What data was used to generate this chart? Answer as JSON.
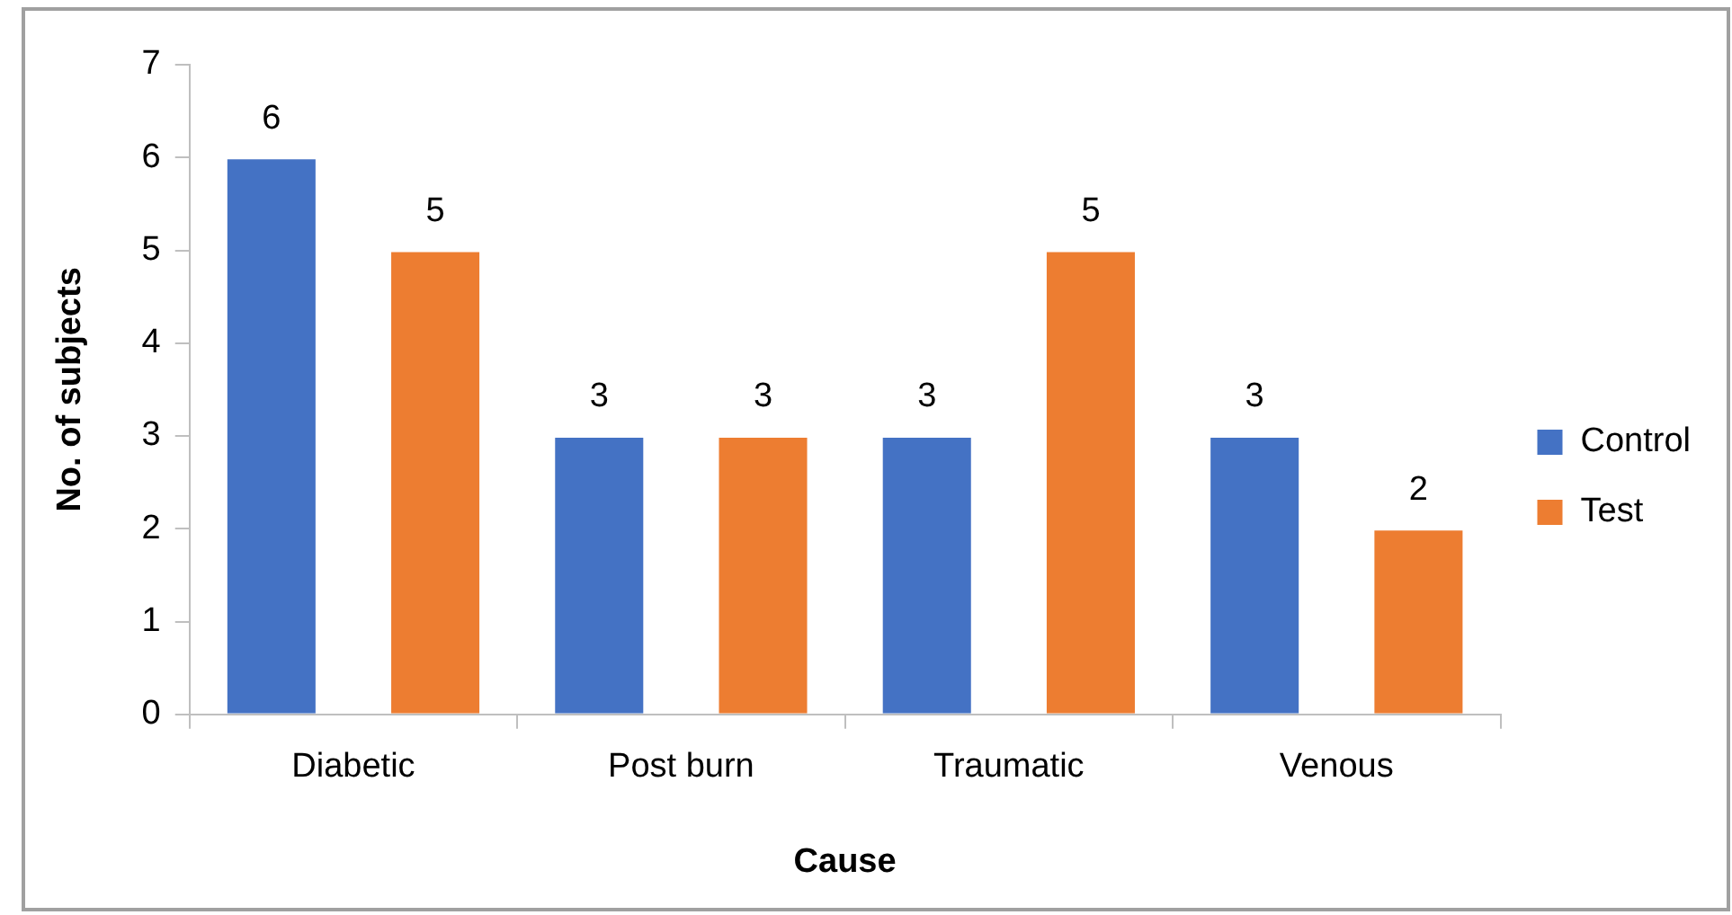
{
  "chart_data": {
    "type": "bar",
    "xlabel": "Cause",
    "ylabel": "No. of subjects",
    "categories": [
      "Diabetic",
      "Post burn",
      "Traumatic",
      "Venous"
    ],
    "series": [
      {
        "name": "Control",
        "color": "#4472c4",
        "values": [
          6,
          3,
          3,
          3
        ]
      },
      {
        "name": "Test",
        "color": "#ed7d31",
        "values": [
          5,
          3,
          5,
          2
        ]
      }
    ],
    "ylim": [
      0,
      7
    ],
    "yticks": [
      0,
      1,
      2,
      3,
      4,
      5,
      6,
      7
    ],
    "grid": false,
    "legend": "right",
    "data_labels": true
  }
}
